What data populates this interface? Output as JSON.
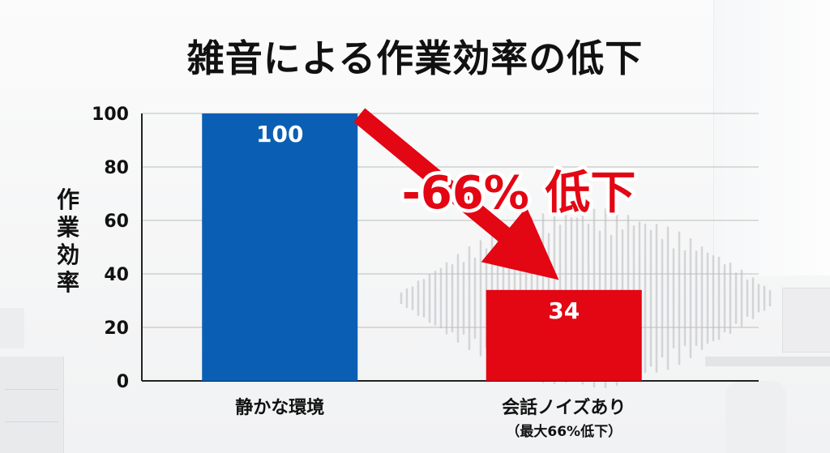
{
  "chart_data": {
    "type": "bar",
    "title": "雑音による作業効率の低下",
    "ylabel": "作業効率",
    "xlabel": "",
    "ylim": [
      0,
      100
    ],
    "yticks": [
      0,
      20,
      40,
      60,
      80,
      100
    ],
    "grid": true,
    "categories": [
      "静かな環境",
      "会話ノイズあり"
    ],
    "category_notes": [
      "",
      "（最大66%低下）"
    ],
    "values": [
      100,
      34
    ],
    "data_labels": [
      "100",
      "34"
    ],
    "bar_colors": [
      "#0a5fb4",
      "#e30613"
    ],
    "annotation": "-66% 低下",
    "annotation_color": "#e30613"
  }
}
